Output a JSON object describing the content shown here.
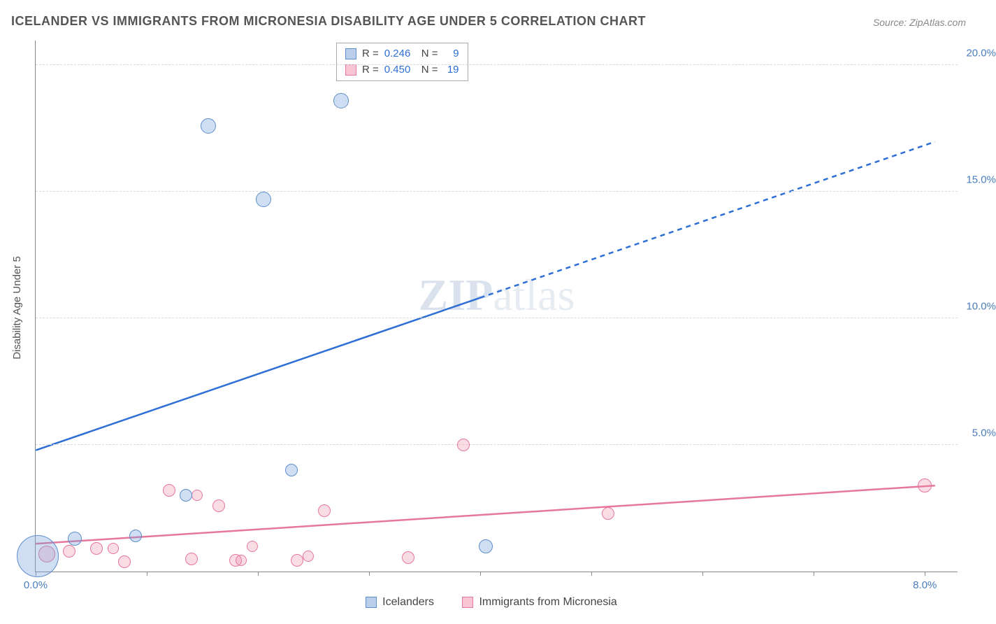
{
  "title": "ICELANDER VS IMMIGRANTS FROM MICRONESIA DISABILITY AGE UNDER 5 CORRELATION CHART",
  "source": "Source: ZipAtlas.com",
  "y_axis_label": "Disability Age Under 5",
  "watermark_a": "ZIP",
  "watermark_b": "atlas",
  "chart": {
    "type": "scatter",
    "xlim": [
      0,
      8.3
    ],
    "ylim": [
      0,
      21
    ],
    "y_ticks": [
      5.0,
      10.0,
      15.0,
      20.0
    ],
    "y_tick_labels": [
      "5.0%",
      "10.0%",
      "15.0%",
      "20.0%"
    ],
    "x_ticks": [
      0,
      1,
      2,
      3,
      4,
      5,
      6,
      7,
      8
    ],
    "x_tick_labels": {
      "0": "0.0%",
      "8": "8.0%"
    },
    "background_color": "#ffffff",
    "grid_color": "#d8d8d8",
    "axis_color": "#888888",
    "label_color": "#4a7ebb",
    "title_color": "#555555",
    "title_fontsize": 18
  },
  "series": {
    "blue": {
      "label": "Icelanders",
      "fill": "rgba(120,160,220,0.35)",
      "stroke": "#5e8ecb",
      "line_color": "#2e6fd6",
      "R": "0.246",
      "N": "9",
      "trend": {
        "x1": 0,
        "y1": 4.8,
        "x2": 8.1,
        "y2": 17.0,
        "solid_until_x": 4.0
      },
      "points": [
        {
          "x": 0.02,
          "y": 0.6,
          "r": 30
        },
        {
          "x": 0.35,
          "y": 1.3,
          "r": 10
        },
        {
          "x": 0.9,
          "y": 1.4,
          "r": 9
        },
        {
          "x": 1.35,
          "y": 3.0,
          "r": 9
        },
        {
          "x": 1.55,
          "y": 17.6,
          "r": 11
        },
        {
          "x": 2.05,
          "y": 14.7,
          "r": 11
        },
        {
          "x": 2.3,
          "y": 4.0,
          "r": 9
        },
        {
          "x": 2.75,
          "y": 18.6,
          "r": 11
        },
        {
          "x": 4.05,
          "y": 1.0,
          "r": 10
        }
      ]
    },
    "pink": {
      "label": "Immigrants from Micronesia",
      "fill": "rgba(240,140,170,0.3)",
      "stroke": "#e6779d",
      "line_color": "#e6779d",
      "R": "0.450",
      "N": "19",
      "trend": {
        "x1": 0,
        "y1": 1.1,
        "x2": 8.1,
        "y2": 3.4,
        "solid_until_x": 8.1
      },
      "points": [
        {
          "x": 0.1,
          "y": 0.7,
          "r": 12
        },
        {
          "x": 0.3,
          "y": 0.8,
          "r": 9
        },
        {
          "x": 0.55,
          "y": 0.9,
          "r": 9
        },
        {
          "x": 0.8,
          "y": 0.4,
          "r": 9
        },
        {
          "x": 0.7,
          "y": 0.9,
          "r": 8
        },
        {
          "x": 1.2,
          "y": 3.2,
          "r": 9
        },
        {
          "x": 1.45,
          "y": 3.0,
          "r": 8
        },
        {
          "x": 1.4,
          "y": 0.5,
          "r": 9
        },
        {
          "x": 1.65,
          "y": 2.6,
          "r": 9
        },
        {
          "x": 1.8,
          "y": 0.45,
          "r": 9
        },
        {
          "x": 1.95,
          "y": 1.0,
          "r": 8
        },
        {
          "x": 1.85,
          "y": 0.45,
          "r": 8
        },
        {
          "x": 2.35,
          "y": 0.45,
          "r": 9
        },
        {
          "x": 2.45,
          "y": 0.6,
          "r": 8
        },
        {
          "x": 2.6,
          "y": 2.4,
          "r": 9
        },
        {
          "x": 3.35,
          "y": 0.55,
          "r": 9
        },
        {
          "x": 3.85,
          "y": 5.0,
          "r": 9
        },
        {
          "x": 5.15,
          "y": 2.3,
          "r": 9
        },
        {
          "x": 8.0,
          "y": 3.4,
          "r": 10
        }
      ]
    }
  },
  "stats_box": {
    "R_label": "R =",
    "N_label": "N ="
  },
  "bottom_legend": {
    "blue": "Icelanders",
    "pink": "Immigrants from Micronesia"
  }
}
